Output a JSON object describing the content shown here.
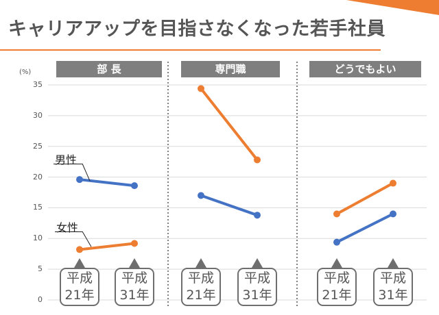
{
  "header": {
    "title": "キャリアアップを目指さなくなった若手社員"
  },
  "colors": {
    "male": "#4472c4",
    "female": "#ed7d31",
    "accent": "#ee7d31",
    "header_bg": "#7f7f7f",
    "grid": "#d9d9d9"
  },
  "chart_data": {
    "type": "line",
    "unit": "(%)",
    "ylim": [
      0,
      35
    ],
    "yticks": [
      "0",
      "5",
      "10",
      "15",
      "20",
      "25",
      "30",
      "35"
    ],
    "grid": true,
    "categories": [
      {
        "line1": "平成",
        "line2": "21年"
      },
      {
        "line1": "平成",
        "line2": "31年"
      }
    ],
    "series_labels": {
      "male": "男性",
      "female": "女性"
    },
    "panels": [
      {
        "title": "部 長",
        "series": [
          {
            "name": "男性",
            "values": [
              19.6,
              18.6
            ]
          },
          {
            "name": "女性",
            "values": [
              8.2,
              9.2
            ]
          }
        ]
      },
      {
        "title": "専門職",
        "series": [
          {
            "name": "男性",
            "values": [
              17.0,
              13.8
            ]
          },
          {
            "name": "女性",
            "values": [
              34.4,
              22.8
            ]
          }
        ]
      },
      {
        "title": "どうでもよい",
        "series": [
          {
            "name": "男性",
            "values": [
              9.4,
              14.0
            ]
          },
          {
            "name": "女性",
            "values": [
              14.0,
              19.0
            ]
          }
        ]
      }
    ]
  }
}
